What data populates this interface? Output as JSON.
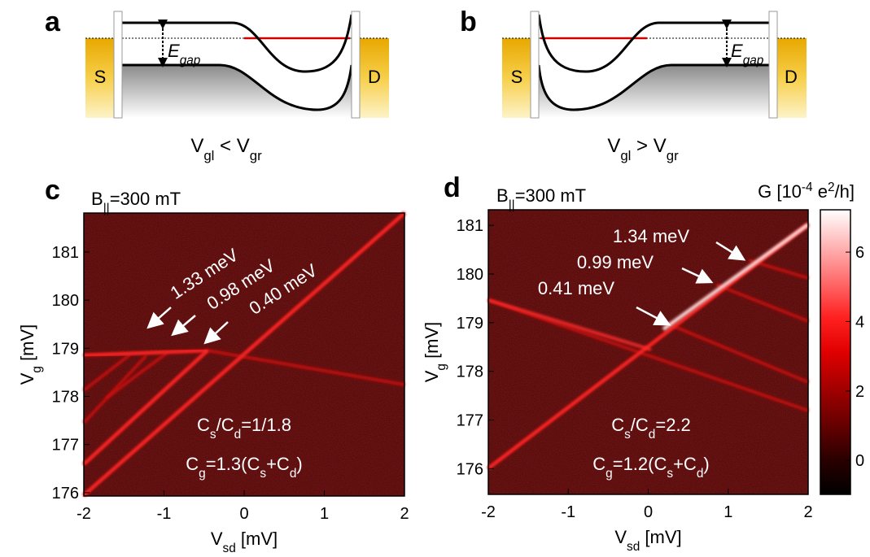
{
  "panels": {
    "a": {
      "label": "a",
      "source": "S",
      "drain": "D",
      "gap": [
        {
          "t": "E"
        },
        {
          "sub": "gap"
        }
      ],
      "caption": [
        {
          "t": "V"
        },
        {
          "sub": "gl"
        },
        {
          "t": " < V"
        },
        {
          "sub": "gr"
        }
      ]
    },
    "b": {
      "label": "b",
      "source": "S",
      "drain": "D",
      "gap": [
        {
          "t": "E"
        },
        {
          "sub": "gap"
        }
      ],
      "caption": [
        {
          "t": "V"
        },
        {
          "sub": "gl"
        },
        {
          "t": " > V"
        },
        {
          "sub": "gr"
        }
      ]
    },
    "c": {
      "label": "c",
      "field": [
        {
          "t": "B"
        },
        {
          "sub": "||"
        },
        {
          "t": "=300 mT"
        }
      ],
      "xlabel": [
        {
          "t": "V"
        },
        {
          "sub": "sd"
        },
        {
          "t": " [mV]"
        }
      ],
      "ylabel": [
        {
          "t": "V"
        },
        {
          "sub": "g"
        },
        {
          "t": " [mV]"
        }
      ],
      "xlim": [
        -2,
        2
      ],
      "xticks": [
        -2,
        -1,
        0,
        1,
        2
      ],
      "ylim": [
        175.93,
        181.81
      ],
      "yticks": [
        176,
        177,
        178,
        179,
        180,
        181
      ],
      "annotations": [
        "1.33 meV",
        "0.98 meV",
        "0.40 meV"
      ],
      "ratio": [
        {
          "t": "C"
        },
        {
          "sub": "s"
        },
        {
          "t": "/C"
        },
        {
          "sub": "d"
        },
        {
          "t": "=1/1.8"
        }
      ],
      "gate": [
        {
          "t": "C"
        },
        {
          "sub": "g"
        },
        {
          "t": "=1.3(C"
        },
        {
          "sub": "s"
        },
        {
          "t": "+C"
        },
        {
          "sub": "d"
        },
        {
          "t": ")"
        }
      ]
    },
    "d": {
      "label": "d",
      "field": [
        {
          "t": "B"
        },
        {
          "sub": "||"
        },
        {
          "t": "=300 mT"
        }
      ],
      "xlabel": [
        {
          "t": "V"
        },
        {
          "sub": "sd"
        },
        {
          "t": " [mV]"
        }
      ],
      "ylabel": [
        {
          "t": "V"
        },
        {
          "sub": "g"
        },
        {
          "t": " [mV]"
        }
      ],
      "xlim": [
        -2,
        2
      ],
      "xticks": [
        -2,
        -1,
        0,
        1,
        2
      ],
      "ylim": [
        175.47,
        181.32
      ],
      "yticks": [
        176,
        177,
        178,
        179,
        180,
        181
      ],
      "annotations": [
        "1.34 meV",
        "0.99 meV",
        "0.41 meV"
      ],
      "ratio": [
        {
          "t": "C"
        },
        {
          "sub": "s"
        },
        {
          "t": "/C"
        },
        {
          "sub": "d"
        },
        {
          "t": "=2.2"
        }
      ],
      "gate": [
        {
          "t": "C"
        },
        {
          "sub": "g"
        },
        {
          "t": "=1.2(C"
        },
        {
          "sub": "s"
        },
        {
          "t": "+C"
        },
        {
          "sub": "d"
        },
        {
          "t": ")"
        }
      ],
      "colorbar": {
        "title": [
          {
            "t": "G [10"
          },
          {
            "sup": "-4"
          },
          {
            "t": " e"
          },
          {
            "sup": "2"
          },
          {
            "t": "/h]"
          }
        ],
        "lim": [
          -0.98,
          7.22
        ],
        "ticks": [
          0,
          2,
          4,
          6
        ]
      }
    }
  }
}
